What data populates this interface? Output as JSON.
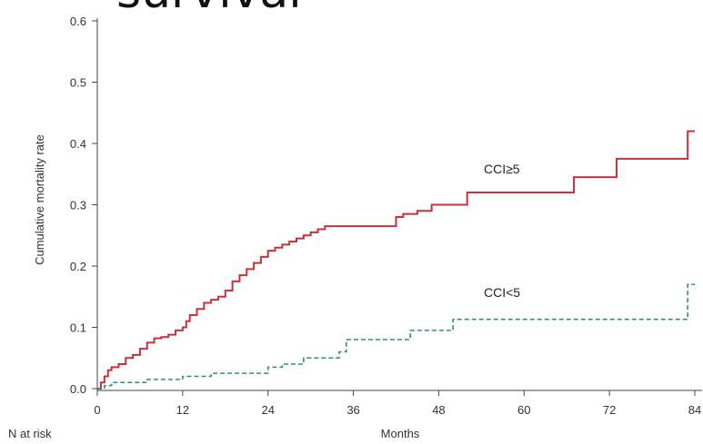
{
  "chart_data": {
    "type": "line",
    "title": "survival",
    "xlabel": "Months",
    "ylabel": "Cumulative mortality rate",
    "footer_label": "N at risk",
    "xlim": [
      0,
      87
    ],
    "ylim": [
      0,
      0.6
    ],
    "x_ticks": [
      "0",
      "12",
      "24",
      "36",
      "48",
      "60",
      "72",
      "84"
    ],
    "y_ticks": [
      "0.0",
      "0.1",
      "0.2",
      "0.3",
      "0.4",
      "0.5",
      "0.6"
    ],
    "grid": false,
    "series": [
      {
        "name": "CCI≥5",
        "color": "#c8323c",
        "style": "solid",
        "x": [
          0,
          0.5,
          1,
          1.5,
          2,
          3,
          4,
          5,
          6,
          7,
          8,
          9,
          10,
          11,
          12,
          12.5,
          13,
          14,
          15,
          16,
          17,
          18,
          19,
          20,
          21,
          22,
          23,
          24,
          25,
          26,
          27,
          28,
          29,
          30,
          31,
          32,
          42,
          43,
          45,
          47,
          52,
          66,
          67,
          72,
          73,
          82,
          83,
          84
        ],
        "y": [
          0.0,
          0.01,
          0.02,
          0.03,
          0.035,
          0.04,
          0.05,
          0.055,
          0.065,
          0.075,
          0.082,
          0.084,
          0.088,
          0.095,
          0.1,
          0.11,
          0.12,
          0.13,
          0.14,
          0.145,
          0.15,
          0.16,
          0.175,
          0.185,
          0.195,
          0.205,
          0.215,
          0.225,
          0.23,
          0.235,
          0.24,
          0.245,
          0.25,
          0.255,
          0.26,
          0.265,
          0.28,
          0.285,
          0.29,
          0.3,
          0.32,
          0.32,
          0.345,
          0.345,
          0.375,
          0.375,
          0.42,
          0.42
        ]
      },
      {
        "name": "CCI<5",
        "color": "#3a8a82",
        "style": "dashed",
        "x": [
          0,
          1,
          2,
          7,
          8,
          12,
          13,
          16,
          24,
          26,
          29,
          34,
          35,
          44,
          49,
          50,
          82,
          83,
          84
        ],
        "y": [
          0.0,
          0.005,
          0.01,
          0.015,
          0.015,
          0.02,
          0.02,
          0.025,
          0.035,
          0.04,
          0.05,
          0.06,
          0.08,
          0.095,
          0.095,
          0.113,
          0.113,
          0.17,
          0.17
        ]
      }
    ]
  }
}
